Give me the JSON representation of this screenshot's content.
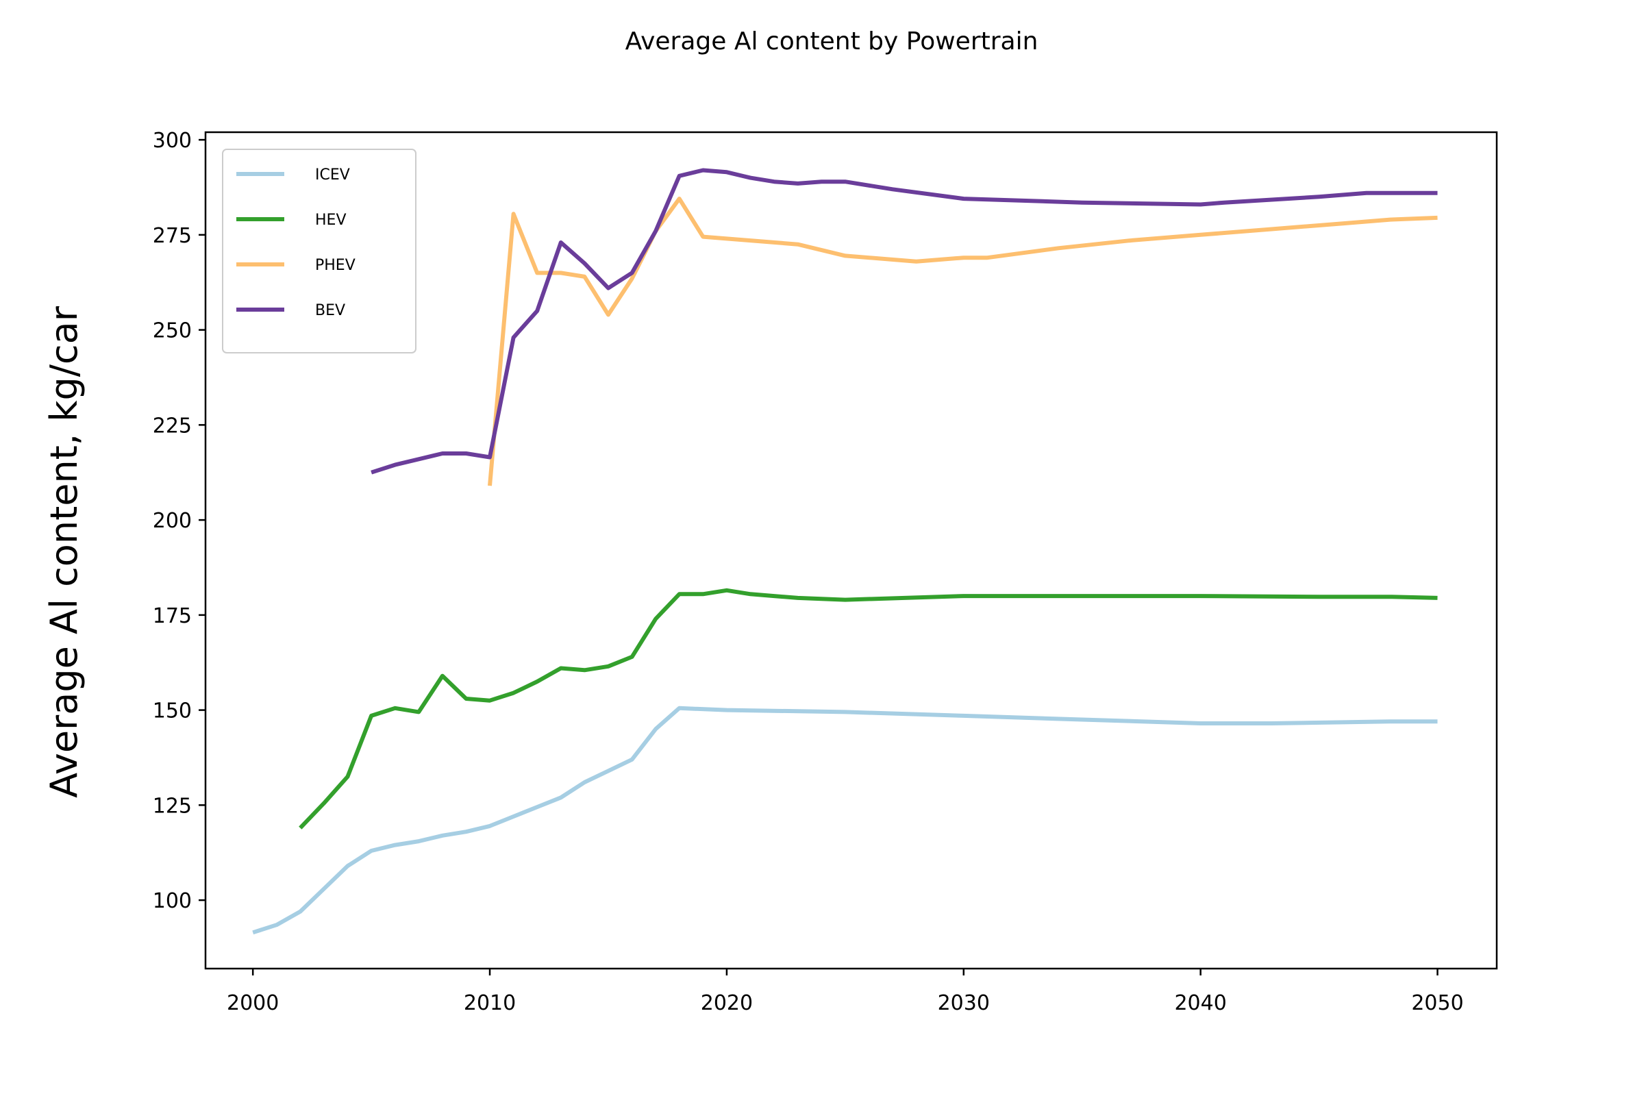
{
  "chart_data": {
    "type": "line",
    "title": "Average Al content by Powertrain",
    "xlabel": "",
    "ylabel": "Average Al content, kg/car",
    "xlim": [
      1998,
      2052.5
    ],
    "ylim": [
      82,
      302
    ],
    "xticks": [
      2000,
      2010,
      2020,
      2030,
      2040,
      2050
    ],
    "yticks": [
      100,
      125,
      150,
      175,
      200,
      225,
      250,
      275,
      300
    ],
    "grid": false,
    "legend_position": "upper-left",
    "series": [
      {
        "name": "ICEV",
        "color": "#a6cee3",
        "points": [
          [
            2000,
            91.5
          ],
          [
            2001,
            93.5
          ],
          [
            2002,
            97
          ],
          [
            2003,
            103
          ],
          [
            2004,
            109
          ],
          [
            2005,
            113
          ],
          [
            2006,
            114.5
          ],
          [
            2007,
            115.5
          ],
          [
            2008,
            117
          ],
          [
            2009,
            118
          ],
          [
            2010,
            119.5
          ],
          [
            2011,
            122
          ],
          [
            2012,
            124.5
          ],
          [
            2013,
            127
          ],
          [
            2014,
            131
          ],
          [
            2015,
            134
          ],
          [
            2016,
            137
          ],
          [
            2017,
            145
          ],
          [
            2018,
            150.5
          ],
          [
            2020,
            150
          ],
          [
            2025,
            149.5
          ],
          [
            2030,
            148.5
          ],
          [
            2035,
            147.5
          ],
          [
            2040,
            146.5
          ],
          [
            2043,
            146.5
          ],
          [
            2046,
            146.8
          ],
          [
            2048,
            147
          ],
          [
            2050,
            147
          ]
        ]
      },
      {
        "name": "HEV",
        "color": "#33a02c",
        "points": [
          [
            2002,
            119
          ],
          [
            2003,
            125.5
          ],
          [
            2004,
            132.5
          ],
          [
            2005,
            148.5
          ],
          [
            2006,
            150.5
          ],
          [
            2007,
            149.5
          ],
          [
            2008,
            159
          ],
          [
            2009,
            153
          ],
          [
            2010,
            152.5
          ],
          [
            2011,
            154.5
          ],
          [
            2012,
            157.5
          ],
          [
            2013,
            161
          ],
          [
            2014,
            160.5
          ],
          [
            2015,
            161.5
          ],
          [
            2016,
            164
          ],
          [
            2017,
            174
          ],
          [
            2018,
            180.5
          ],
          [
            2019,
            180.5
          ],
          [
            2020,
            181.5
          ],
          [
            2021,
            180.5
          ],
          [
            2022,
            180
          ],
          [
            2023,
            179.5
          ],
          [
            2025,
            179
          ],
          [
            2030,
            180
          ],
          [
            2040,
            180
          ],
          [
            2045,
            179.8
          ],
          [
            2048,
            179.8
          ],
          [
            2050,
            179.5
          ]
        ]
      },
      {
        "name": "PHEV",
        "color": "#fdbf6f",
        "points": [
          [
            2010,
            209
          ],
          [
            2011,
            280.5
          ],
          [
            2012,
            265
          ],
          [
            2013,
            265
          ],
          [
            2014,
            264
          ],
          [
            2015,
            254
          ],
          [
            2016,
            263.5
          ],
          [
            2017,
            276
          ],
          [
            2018,
            284.5
          ],
          [
            2019,
            274.5
          ],
          [
            2020,
            274
          ],
          [
            2023,
            272.5
          ],
          [
            2025,
            269.5
          ],
          [
            2028,
            268
          ],
          [
            2030,
            269
          ],
          [
            2031,
            269
          ],
          [
            2034,
            271.5
          ],
          [
            2037,
            273.5
          ],
          [
            2040,
            275
          ],
          [
            2043,
            276.5
          ],
          [
            2046,
            278
          ],
          [
            2048,
            279
          ],
          [
            2050,
            279.5
          ]
        ]
      },
      {
        "name": "BEV",
        "color": "#6a3d9a",
        "points": [
          [
            2005,
            212.5
          ],
          [
            2006,
            214.5
          ],
          [
            2007,
            216
          ],
          [
            2008,
            217.5
          ],
          [
            2009,
            217.5
          ],
          [
            2010,
            216.5
          ],
          [
            2011,
            248
          ],
          [
            2012,
            255
          ],
          [
            2013,
            273
          ],
          [
            2014,
            267.5
          ],
          [
            2015,
            261
          ],
          [
            2016,
            265
          ],
          [
            2017,
            276
          ],
          [
            2018,
            290.5
          ],
          [
            2019,
            292
          ],
          [
            2020,
            291.5
          ],
          [
            2021,
            290
          ],
          [
            2022,
            289
          ],
          [
            2023,
            288.5
          ],
          [
            2024,
            289
          ],
          [
            2025,
            289
          ],
          [
            2027,
            287
          ],
          [
            2030,
            284.5
          ],
          [
            2035,
            283.5
          ],
          [
            2040,
            283
          ],
          [
            2041,
            283.5
          ],
          [
            2045,
            285
          ],
          [
            2047,
            286
          ],
          [
            2048,
            286
          ],
          [
            2050,
            286
          ]
        ]
      }
    ]
  }
}
